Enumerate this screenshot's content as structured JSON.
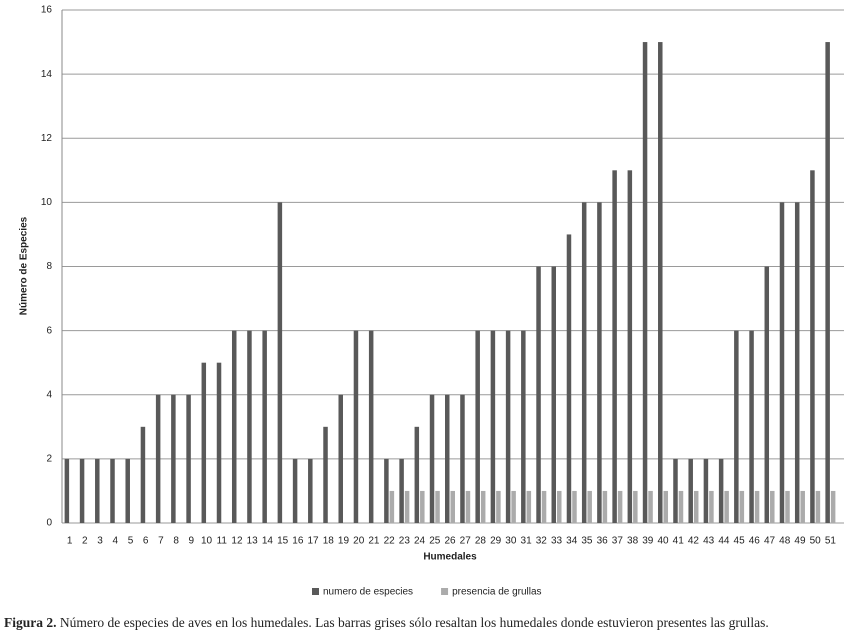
{
  "chart_data": {
    "type": "bar",
    "x_label": "Humedales",
    "y_label": "Número de Especies",
    "caption_label": "Figura 2.",
    "caption": "Número de especies de aves en los humedales. Las barras grises sólo resaltan los humedales donde estuvieron presentes las grullas.",
    "categories": [
      "1",
      "2",
      "3",
      "4",
      "5",
      "6",
      "7",
      "8",
      "9",
      "10",
      "11",
      "12",
      "13",
      "14",
      "15",
      "16",
      "17",
      "18",
      "19",
      "20",
      "21",
      "22",
      "23",
      "24",
      "25",
      "26",
      "27",
      "28",
      "29",
      "30",
      "31",
      "32",
      "33",
      "34",
      "35",
      "36",
      "37",
      "38",
      "39",
      "40",
      "41",
      "42",
      "43",
      "44",
      "45",
      "46",
      "47",
      "48",
      "49",
      "50",
      "51"
    ],
    "series": [
      {
        "name": "numero de especies",
        "color": "#595959",
        "values": [
          2,
          2,
          2,
          2,
          2,
          3,
          4,
          4,
          4,
          5,
          5,
          6,
          6,
          6,
          10,
          2,
          2,
          3,
          4,
          6,
          6,
          2,
          2,
          3,
          4,
          4,
          4,
          6,
          6,
          6,
          6,
          8,
          8,
          9,
          10,
          10,
          11,
          11,
          15,
          15,
          2,
          2,
          2,
          2,
          6,
          6,
          8,
          10,
          10,
          11,
          15
        ]
      },
      {
        "name": "presencia de grullas",
        "color": "#ababab",
        "values": [
          0,
          0,
          0,
          0,
          0,
          0,
          0,
          0,
          0,
          0,
          0,
          0,
          0,
          0,
          0,
          0,
          0,
          0,
          0,
          0,
          0,
          1,
          1,
          1,
          1,
          1,
          1,
          1,
          1,
          1,
          1,
          1,
          1,
          1,
          1,
          1,
          1,
          1,
          1,
          1,
          1,
          1,
          1,
          1,
          1,
          1,
          1,
          1,
          1,
          1,
          1
        ]
      }
    ],
    "ylim": [
      0,
      16
    ],
    "yticks": [
      0,
      2,
      4,
      6,
      8,
      10,
      12,
      14,
      16
    ],
    "grid": true,
    "legend": "bottom"
  }
}
